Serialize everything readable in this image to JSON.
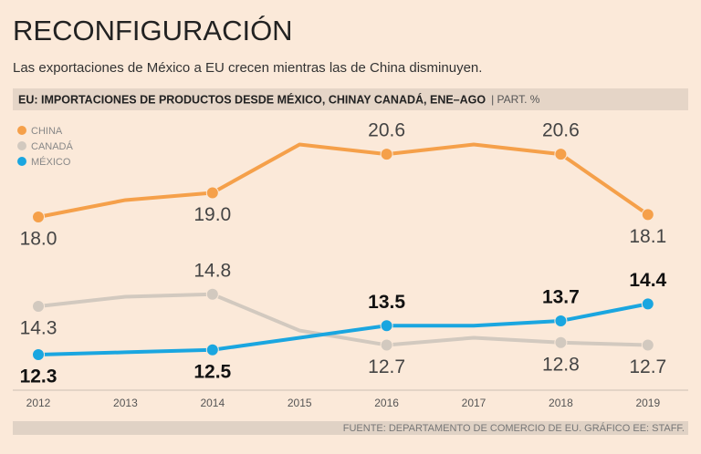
{
  "chart_data": {
    "type": "line",
    "title": "RECONFIGURACIÓN",
    "subtitle": "Las exportaciones de México a EU crecen mientras las de China disminuyen.",
    "header": "EU: IMPORTACIONES DE PRODUCTOS DESDE MÉXICO, CHINAY CANADÁ, ENE–AGO",
    "unit": "| PART. %",
    "source": "FUENTE: DEPARTAMENTO DE COMERCIO DE EU. GRÁFICO EE: STAFF.",
    "categories": [
      "2012",
      "2013",
      "2014",
      "2015",
      "2016",
      "2017",
      "2018",
      "2019"
    ],
    "ylim": [
      12,
      21
    ],
    "series": [
      {
        "name": "CHINA",
        "color": "#f5a04a",
        "values": [
          18.0,
          18.7,
          19.0,
          21.0,
          20.6,
          21.0,
          20.6,
          18.1
        ],
        "value_labels": [
          "18.0",
          null,
          "19.0",
          null,
          "20.6",
          null,
          "20.6",
          "18.1"
        ]
      },
      {
        "name": "CANADÁ",
        "color": "#d2c9bf",
        "values": [
          14.3,
          14.7,
          14.8,
          13.3,
          12.7,
          13.0,
          12.8,
          12.7
        ],
        "value_labels": [
          "14.3",
          null,
          "14.8",
          null,
          "12.7",
          null,
          "12.8",
          "12.7"
        ]
      },
      {
        "name": "MÉXICO",
        "color": "#1aa6e0",
        "values": [
          12.3,
          12.4,
          12.5,
          13.0,
          13.5,
          13.5,
          13.7,
          14.4
        ],
        "value_labels": [
          "12.3",
          null,
          "12.5",
          null,
          "13.5",
          null,
          "13.7",
          "14.4"
        ]
      }
    ]
  }
}
